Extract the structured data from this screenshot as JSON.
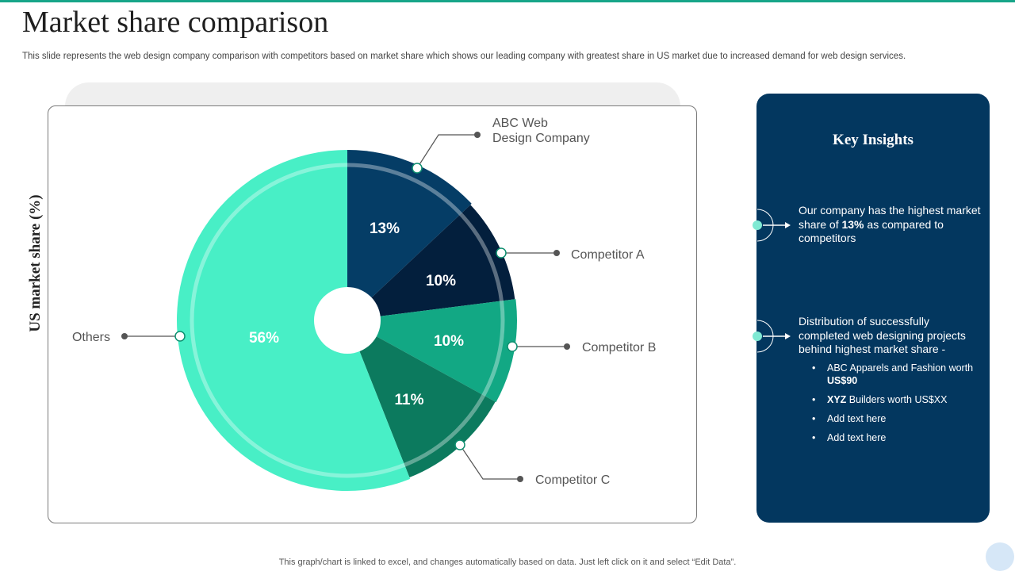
{
  "page": {
    "title": "Market share comparison",
    "subtitle": "This slide represents the web design company comparison with competitors based on market share which shows our leading company with greatest share in US market due to increased demand for web design services.",
    "footer": "This graph/chart is linked to excel,  and changes automatically based on data. Just left click on it and select “Edit Data”."
  },
  "chart_data": {
    "type": "pie",
    "ylabel": "US market share (%)",
    "slices": [
      {
        "name": "ABC Web Design Company",
        "label_lines": [
          "ABC Web",
          "Design Company"
        ],
        "value": 13,
        "value_label": "13%",
        "color": "#053d66"
      },
      {
        "name": "Competitor A",
        "label_lines": [
          "Competitor A"
        ],
        "value": 10,
        "value_label": "10%",
        "color": "#031f3d"
      },
      {
        "name": "Competitor B",
        "label_lines": [
          "Competitor B"
        ],
        "value": 10,
        "value_label": "10%",
        "color": "#12a884"
      },
      {
        "name": "Competitor C",
        "label_lines": [
          "Competitor C"
        ],
        "value": 11,
        "value_label": "11%",
        "color": "#0c7a5e"
      },
      {
        "name": "Others",
        "label_lines": [
          "Others"
        ],
        "value": 56,
        "value_label": "56%",
        "color": "#48efc6"
      }
    ]
  },
  "insights": {
    "title": "Key Insights",
    "item1": {
      "pre": "Our company has the highest market share of ",
      "bold": "13%",
      "post": " as compared to competitors"
    },
    "item2": {
      "text": "Distribution of successfully completed web designing projects behind highest market share -"
    },
    "bullets": [
      {
        "bold_first": false,
        "pre": "ABC Apparels and Fashion worth ",
        "bold": "US$90",
        "post": ""
      },
      {
        "bold_first": true,
        "pre": "",
        "bold": "XYZ",
        "post": " Builders worth US$XX"
      },
      {
        "bold_first": false,
        "pre": "Add text here",
        "bold": "",
        "post": ""
      },
      {
        "bold_first": false,
        "pre": "Add text here",
        "bold": "",
        "post": ""
      }
    ]
  }
}
